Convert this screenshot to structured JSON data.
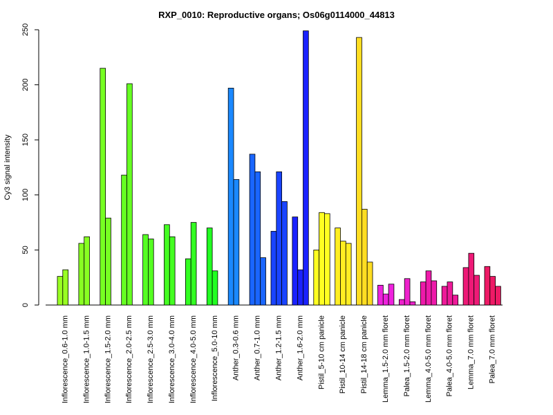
{
  "chart_data": {
    "type": "bar",
    "title": "RXP_0010: Reproductive organs; Os06g0114000_44813",
    "xlabel": "",
    "ylabel": "Cy3 signal intensity",
    "ylim": [
      0,
      250
    ],
    "yticks": [
      0,
      50,
      100,
      150,
      200,
      250
    ],
    "grid": false,
    "legend": "none",
    "groups": [
      {
        "label": "Inflorescence_0.6-1.0 mm",
        "color": "#99ff22",
        "values": [
          26,
          32
        ]
      },
      {
        "label": "Inflorescence_1.0-1.5 mm",
        "color": "#88ff22",
        "values": [
          56,
          62
        ]
      },
      {
        "label": "Inflorescence_1.5-2.0 mm",
        "color": "#77ff22",
        "values": [
          215,
          79
        ]
      },
      {
        "label": "Inflorescence_2.0-2.5 mm",
        "color": "#66ff22",
        "values": [
          118,
          201
        ]
      },
      {
        "label": "Inflorescence_2.5-3.0 mm",
        "color": "#55ff22",
        "values": [
          64,
          60
        ]
      },
      {
        "label": "Inflorescence_3.0-4.0 mm",
        "color": "#44ff22",
        "values": [
          73,
          62
        ]
      },
      {
        "label": "Inflorescence_4.0-5.0 mm",
        "color": "#33ff22",
        "values": [
          42,
          75
        ]
      },
      {
        "label": "Inflorescence_5.0-10 mm",
        "color": "#22ff22",
        "values": [
          70,
          31
        ]
      },
      {
        "label": "Anther_0.3-0.6 mm",
        "color": "#1a88ff",
        "values": [
          197,
          114
        ]
      },
      {
        "label": "Anther_0.7-1.0 mm",
        "color": "#1a66ff",
        "values": [
          137,
          121,
          43
        ]
      },
      {
        "label": "Anther_1.2-1.5 mm",
        "color": "#1a44ff",
        "values": [
          67,
          121,
          94
        ]
      },
      {
        "label": "Anther_1.6-2.0 mm",
        "color": "#1a22ff",
        "values": [
          80,
          32,
          249
        ]
      },
      {
        "label": "Pistil_5-10 cm panicle",
        "color": "#ffff22",
        "values": [
          50,
          84,
          83
        ]
      },
      {
        "label": "Pistil_10-14 cm panicle",
        "color": "#ffee22",
        "values": [
          70,
          58,
          56
        ]
      },
      {
        "label": "Pistil_14-18 cm panicle",
        "color": "#ffdd22",
        "values": [
          243,
          87,
          39
        ]
      },
      {
        "label": "Lemma_1.5-2.0 mm floret",
        "color": "#ee22dd",
        "values": [
          18,
          10,
          19
        ]
      },
      {
        "label": "Palea_1.5-2.0 mm floret",
        "color": "#ee22cc",
        "values": [
          5,
          24,
          3
        ]
      },
      {
        "label": "Lemma_4.0-5.0 mm floret",
        "color": "#ee1aaa",
        "values": [
          21,
          31,
          22
        ]
      },
      {
        "label": "Palea_4.0-5.0 mm floret",
        "color": "#ee1a99",
        "values": [
          17,
          21,
          9
        ]
      },
      {
        "label": "Lemma_7.0 mm floret",
        "color": "#ee1a77",
        "values": [
          34,
          47,
          27
        ]
      },
      {
        "label": "Palea_7.0 mm floret",
        "color": "#ee1a66",
        "values": [
          35,
          26,
          17
        ]
      }
    ]
  }
}
